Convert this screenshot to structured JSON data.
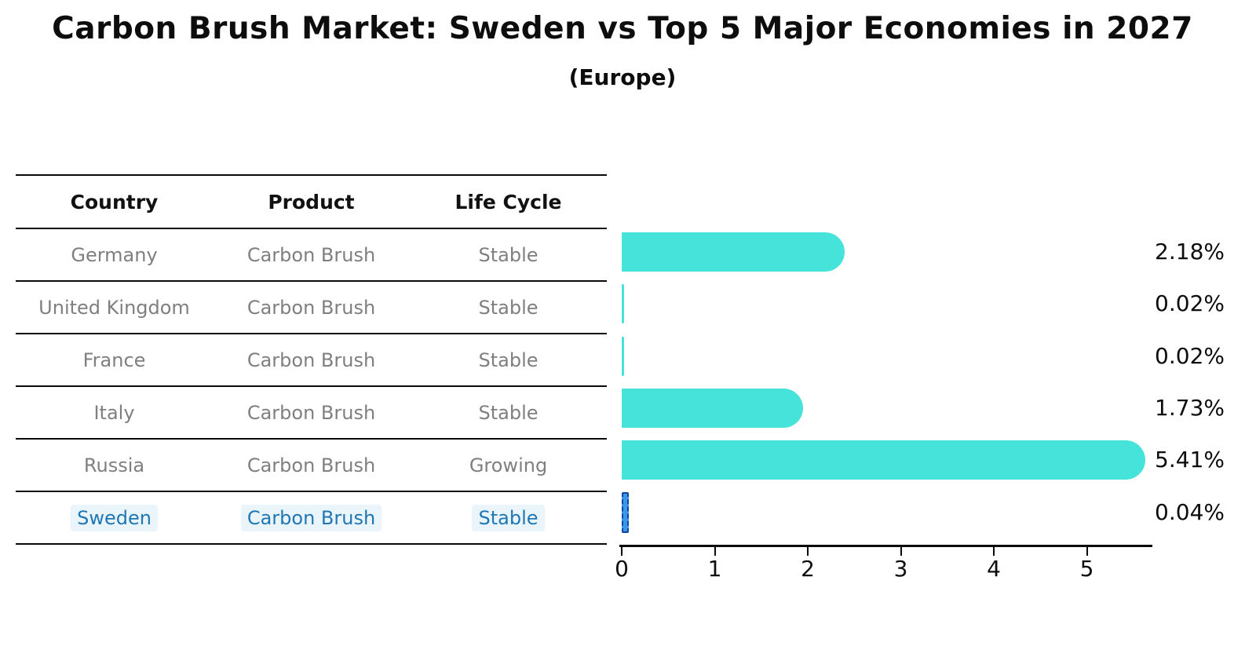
{
  "title": "Carbon Brush Market: Sweden vs Top 5 Major Economies in 2027",
  "subtitle": "(Europe)",
  "table": {
    "columns": [
      "Country",
      "Product",
      "Life Cycle"
    ],
    "rows": [
      {
        "country": "Germany",
        "product": "Carbon Brush",
        "life_cycle": "Stable",
        "highlight": false
      },
      {
        "country": "United Kingdom",
        "product": "Carbon Brush",
        "life_cycle": "Stable",
        "highlight": false
      },
      {
        "country": "France",
        "product": "Carbon Brush",
        "life_cycle": "Stable",
        "highlight": false
      },
      {
        "country": "Italy",
        "product": "Carbon Brush",
        "life_cycle": "Stable",
        "highlight": false
      },
      {
        "country": "Russia",
        "product": "Carbon Brush",
        "life_cycle": "Growing",
        "highlight": false
      },
      {
        "country": "Sweden",
        "product": "Carbon Brush",
        "life_cycle": "Stable",
        "highlight": true
      }
    ]
  },
  "chart_data": {
    "type": "bar",
    "orientation": "horizontal",
    "title": "Carbon Brush Market: Sweden vs Top 5 Major Economies in 2027 (Europe)",
    "categories": [
      "Germany",
      "United Kingdom",
      "France",
      "Italy",
      "Russia",
      "Sweden"
    ],
    "values": [
      2.18,
      0.02,
      0.02,
      1.73,
      5.41,
      0.04
    ],
    "value_labels": [
      "2.18%",
      "0.02%",
      "0.02%",
      "1.73%",
      "5.41%",
      "0.04%"
    ],
    "xlabel": "",
    "ylabel": "",
    "xticks": [
      0,
      1,
      2,
      3,
      4,
      5
    ],
    "xlim": [
      0,
      5.7
    ],
    "grid": false,
    "legend": false,
    "value_label_position": "right",
    "bar_color": "#45E3DA",
    "highlight_index": 5,
    "highlight_fill": "#3b97e8",
    "highlight_edge": "#0d47a1",
    "highlight_text_color": "#1f77b4",
    "row_text_color": "#7f7f7f"
  }
}
